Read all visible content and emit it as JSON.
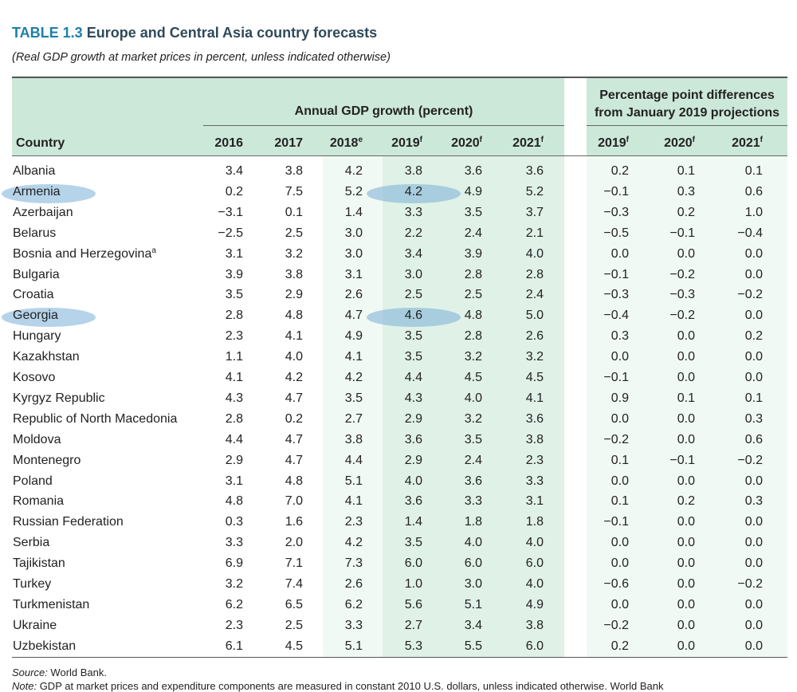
{
  "title": {
    "number": "TABLE 1.3",
    "text": "Europe and Central Asia country forecasts"
  },
  "subtitle": "(Real GDP growth at market prices in percent, unless indicated otherwise)",
  "header": {
    "group_left": "Annual GDP growth (percent)",
    "group_right_line1": "Percentage point differences",
    "group_right_line2": "from January 2019 projections",
    "country": "Country",
    "columns": [
      {
        "label": "2016",
        "sup": ""
      },
      {
        "label": "2017",
        "sup": ""
      },
      {
        "label": "2018",
        "sup": "e"
      },
      {
        "label": "2019",
        "sup": "f"
      },
      {
        "label": "2020",
        "sup": "f"
      },
      {
        "label": "2021",
        "sup": "f"
      },
      {
        "label": "2019",
        "sup": "f"
      },
      {
        "label": "2020",
        "sup": "f"
      },
      {
        "label": "2021",
        "sup": "f"
      }
    ]
  },
  "rows": [
    {
      "country": "Albania",
      "sup": "",
      "highlight": false,
      "values": [
        "3.4",
        "3.8",
        "4.2",
        "3.8",
        "3.6",
        "3.6",
        "0.2",
        "0.1",
        "0.1"
      ]
    },
    {
      "country": "Armenia",
      "sup": "",
      "highlight": true,
      "values": [
        "0.2",
        "7.5",
        "5.2",
        "4.2",
        "4.9",
        "5.2",
        "−0.1",
        "0.3",
        "0.6"
      ]
    },
    {
      "country": "Azerbaijan",
      "sup": "",
      "highlight": false,
      "values": [
        "−3.1",
        "0.1",
        "1.4",
        "3.3",
        "3.5",
        "3.7",
        "−0.3",
        "0.2",
        "1.0"
      ]
    },
    {
      "country": "Belarus",
      "sup": "",
      "highlight": false,
      "values": [
        "−2.5",
        "2.5",
        "3.0",
        "2.2",
        "2.4",
        "2.1",
        "−0.5",
        "−0.1",
        "−0.4"
      ]
    },
    {
      "country": "Bosnia and Herzegovina",
      "sup": "a",
      "highlight": false,
      "values": [
        "3.1",
        "3.2",
        "3.0",
        "3.4",
        "3.9",
        "4.0",
        "0.0",
        "0.0",
        "0.0"
      ]
    },
    {
      "country": "Bulgaria",
      "sup": "",
      "highlight": false,
      "values": [
        "3.9",
        "3.8",
        "3.1",
        "3.0",
        "2.8",
        "2.8",
        "−0.1",
        "−0.2",
        "0.0"
      ]
    },
    {
      "country": "Croatia",
      "sup": "",
      "highlight": false,
      "values": [
        "3.5",
        "2.9",
        "2.6",
        "2.5",
        "2.5",
        "2.4",
        "−0.3",
        "−0.3",
        "−0.2"
      ]
    },
    {
      "country": "Georgia",
      "sup": "",
      "highlight": true,
      "values": [
        "2.8",
        "4.8",
        "4.7",
        "4.6",
        "4.8",
        "5.0",
        "−0.4",
        "−0.2",
        "0.0"
      ]
    },
    {
      "country": "Hungary",
      "sup": "",
      "highlight": false,
      "values": [
        "2.3",
        "4.1",
        "4.9",
        "3.5",
        "2.8",
        "2.6",
        "0.3",
        "0.0",
        "0.2"
      ]
    },
    {
      "country": "Kazakhstan",
      "sup": "",
      "highlight": false,
      "values": [
        "1.1",
        "4.0",
        "4.1",
        "3.5",
        "3.2",
        "3.2",
        "0.0",
        "0.0",
        "0.0"
      ]
    },
    {
      "country": "Kosovo",
      "sup": "",
      "highlight": false,
      "values": [
        "4.1",
        "4.2",
        "4.2",
        "4.4",
        "4.5",
        "4.5",
        "−0.1",
        "0.0",
        "0.0"
      ]
    },
    {
      "country": "Kyrgyz Republic",
      "sup": "",
      "highlight": false,
      "values": [
        "4.3",
        "4.7",
        "3.5",
        "4.3",
        "4.0",
        "4.1",
        "0.9",
        "0.1",
        "0.1"
      ]
    },
    {
      "country": "Republic of North Macedonia",
      "sup": "",
      "highlight": false,
      "values": [
        "2.8",
        "0.2",
        "2.7",
        "2.9",
        "3.2",
        "3.6",
        "0.0",
        "0.0",
        "0.3"
      ]
    },
    {
      "country": "Moldova",
      "sup": "",
      "highlight": false,
      "values": [
        "4.4",
        "4.7",
        "3.8",
        "3.6",
        "3.5",
        "3.8",
        "−0.2",
        "0.0",
        "0.6"
      ]
    },
    {
      "country": "Montenegro",
      "sup": "",
      "highlight": false,
      "values": [
        "2.9",
        "4.7",
        "4.4",
        "2.9",
        "2.4",
        "2.3",
        "0.1",
        "−0.1",
        "−0.2"
      ]
    },
    {
      "country": "Poland",
      "sup": "",
      "highlight": false,
      "values": [
        "3.1",
        "4.8",
        "5.1",
        "4.0",
        "3.6",
        "3.3",
        "0.0",
        "0.0",
        "0.0"
      ]
    },
    {
      "country": "Romania",
      "sup": "",
      "highlight": false,
      "values": [
        "4.8",
        "7.0",
        "4.1",
        "3.6",
        "3.3",
        "3.1",
        "0.1",
        "0.2",
        "0.3"
      ]
    },
    {
      "country": "Russian Federation",
      "sup": "",
      "highlight": false,
      "values": [
        "0.3",
        "1.6",
        "2.3",
        "1.4",
        "1.8",
        "1.8",
        "−0.1",
        "0.0",
        "0.0"
      ]
    },
    {
      "country": "Serbia",
      "sup": "",
      "highlight": false,
      "values": [
        "3.3",
        "2.0",
        "4.2",
        "3.5",
        "4.0",
        "4.0",
        "0.0",
        "0.0",
        "0.0"
      ]
    },
    {
      "country": "Tajikistan",
      "sup": "",
      "highlight": false,
      "values": [
        "6.9",
        "7.1",
        "7.3",
        "6.0",
        "6.0",
        "6.0",
        "0.0",
        "0.0",
        "0.0"
      ]
    },
    {
      "country": "Turkey",
      "sup": "",
      "highlight": false,
      "values": [
        "3.2",
        "7.4",
        "2.6",
        "1.0",
        "3.0",
        "4.0",
        "−0.6",
        "0.0",
        "−0.2"
      ]
    },
    {
      "country": "Turkmenistan",
      "sup": "",
      "highlight": false,
      "values": [
        "6.2",
        "6.5",
        "6.2",
        "5.6",
        "5.1",
        "4.9",
        "0.0",
        "0.0",
        "0.0"
      ]
    },
    {
      "country": "Ukraine",
      "sup": "",
      "highlight": false,
      "values": [
        "2.3",
        "2.5",
        "3.3",
        "2.7",
        "3.4",
        "3.8",
        "−0.2",
        "0.0",
        "0.0"
      ]
    },
    {
      "country": "Uzbekistan",
      "sup": "",
      "highlight": false,
      "values": [
        "6.1",
        "4.5",
        "5.1",
        "5.3",
        "5.5",
        "6.0",
        "0.2",
        "0.0",
        "0.0"
      ]
    }
  ],
  "source": {
    "label": "Source:",
    "text": " World Bank."
  },
  "note": {
    "label": "Note:",
    "text": " GDP at market prices and expenditure components are measured in constant 2010 U.S. dollars, unless indicated otherwise. World Bank"
  },
  "colors": {
    "header_band": "#cce8d9",
    "shade_light": "#f1f9f4",
    "shade_dark": "#e0f1e7",
    "title_number": "#1f7fa8",
    "highlight": "#78afd7"
  }
}
